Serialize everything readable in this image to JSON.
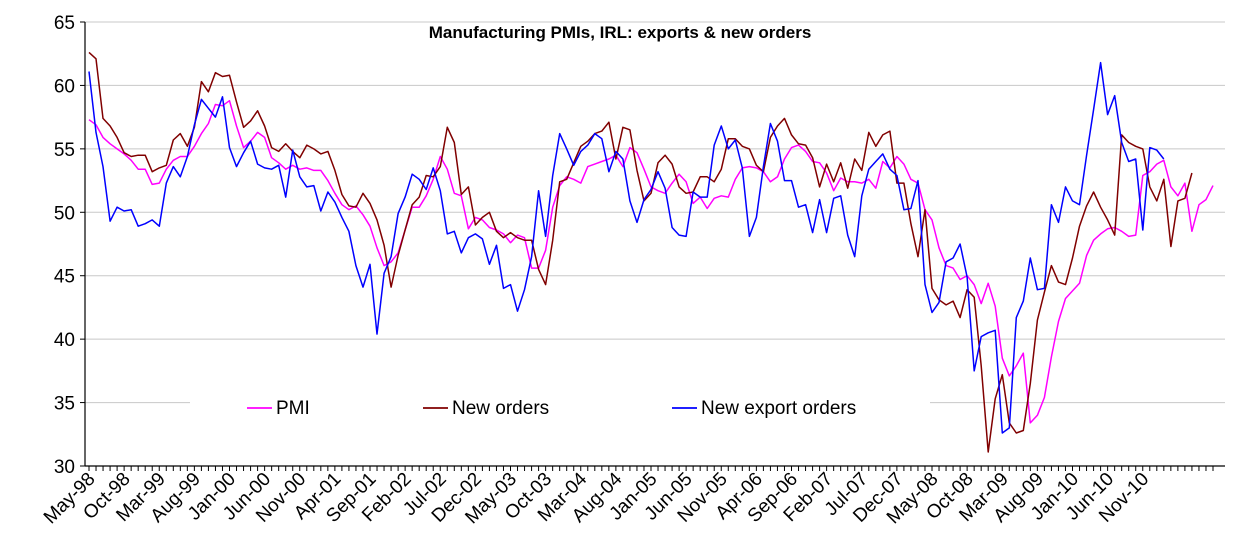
{
  "chart_data": {
    "type": "line",
    "title": "Manufacturing PMIs, IRL: exports & new orders",
    "xlabel": "",
    "ylabel": "",
    "ylim": [
      30,
      65
    ],
    "yticks": [
      30,
      35,
      40,
      45,
      50,
      55,
      60,
      65
    ],
    "grid": "horizontal",
    "legend_position": "bottom-inside",
    "x_start": "May-98",
    "x_end": "Apr-11",
    "x_tick_labels": [
      "May-98",
      "Oct-98",
      "Mar-99",
      "Aug-99",
      "Jan-00",
      "Jun-00",
      "Nov-00",
      "Apr-01",
      "Sep-01",
      "Feb-02",
      "Jul-02",
      "Dec-02",
      "May-03",
      "Oct-03",
      "Mar-04",
      "Aug-04",
      "Jan-05",
      "Jun-05",
      "Nov-05",
      "Apr-06",
      "Sep-06",
      "Feb-07",
      "Jul-07",
      "Dec-07",
      "May-08",
      "Oct-08",
      "Mar-09",
      "Aug-09",
      "Jan-10",
      "Jun-10",
      "Nov-10"
    ],
    "series": [
      {
        "name": "PMI",
        "color": "#ff00ff",
        "values": [
          57.3,
          56.9,
          55.9,
          55.4,
          55.0,
          54.6,
          54.1,
          53.4,
          53.4,
          52.2,
          52.3,
          53.4,
          54.1,
          54.4,
          54.4,
          55.2,
          56.2,
          57.0,
          58.5,
          58.4,
          58.8,
          56.8,
          55.1,
          55.6,
          56.3,
          55.9,
          54.3,
          53.9,
          53.4,
          53.7,
          53.4,
          53.5,
          53.3,
          53.3,
          52.5,
          51.5,
          50.6,
          50.2,
          50.5,
          49.8,
          48.9,
          47.2,
          45.8,
          46.1,
          46.8,
          48.6,
          50.4,
          50.4,
          51.3,
          52.6,
          54.4,
          53.4,
          51.5,
          51.3,
          48.7,
          49.6,
          49.4,
          48.8,
          48.6,
          48.3,
          47.6,
          48.2,
          48.0,
          45.6,
          45.6,
          47.0,
          50.4,
          52.1,
          52.8,
          52.6,
          52.3,
          53.6,
          53.8,
          54.0,
          54.2,
          54.5,
          53.6,
          55.1,
          54.7,
          53.4,
          52.0,
          51.7,
          51.5,
          52.3,
          53.0,
          52.4,
          50.7,
          51.2,
          50.3,
          51.1,
          51.3,
          51.2,
          52.6,
          53.5,
          53.6,
          53.5,
          53.2,
          52.4,
          52.8,
          54.2,
          55.1,
          55.3,
          54.8,
          54.0,
          53.9,
          53.1,
          51.7,
          52.7,
          52.4,
          52.4,
          52.3,
          52.6,
          51.9,
          54.0,
          53.5,
          54.4,
          53.8,
          52.6,
          52.3,
          50.2,
          49.4,
          47.2,
          45.8,
          45.6,
          44.7,
          45.0,
          44.3,
          42.8,
          44.4,
          42.6,
          38.5,
          37.1,
          37.9,
          38.9,
          33.4,
          34.0,
          35.4,
          38.6,
          41.4,
          43.2,
          43.8,
          44.4,
          46.6,
          47.8,
          48.3,
          48.7,
          48.8,
          48.5,
          48.1,
          48.2,
          52.9,
          53.2,
          53.8,
          54.1,
          52.0,
          51.3,
          52.3,
          48.5,
          50.6,
          51.0,
          52.1
        ]
      },
      {
        "name": "New orders",
        "color": "#800000",
        "values": [
          62.6,
          62.1,
          57.4,
          56.8,
          55.9,
          54.7,
          54.4,
          54.5,
          54.5,
          53.2,
          53.5,
          53.7,
          55.7,
          56.2,
          55.2,
          56.7,
          60.3,
          59.5,
          61.0,
          60.7,
          60.8,
          58.7,
          56.7,
          57.2,
          58.0,
          56.8,
          55.1,
          54.8,
          55.4,
          54.8,
          54.3,
          55.3,
          55.0,
          54.6,
          54.8,
          53.3,
          51.4,
          50.5,
          50.4,
          51.5,
          50.7,
          49.4,
          47.4,
          44.1,
          46.6,
          48.6,
          50.6,
          51.2,
          52.9,
          52.8,
          53.6,
          56.7,
          55.5,
          51.4,
          52.0,
          49.0,
          49.6,
          50.0,
          48.5,
          48.0,
          48.4,
          48.0,
          47.8,
          47.8,
          45.5,
          44.3,
          47.8,
          52.4,
          52.6,
          53.9,
          55.2,
          55.6,
          56.2,
          56.4,
          57.1,
          54.2,
          56.7,
          56.5,
          53.3,
          50.9,
          51.5,
          53.9,
          54.5,
          53.8,
          52.0,
          51.5,
          51.6,
          52.8,
          52.8,
          52.4,
          53.4,
          55.8,
          55.8,
          55.2,
          55.0,
          53.7,
          53.2,
          55.9,
          56.8,
          57.4,
          56.1,
          55.4,
          55.3,
          54.3,
          52.0,
          53.8,
          52.4,
          53.9,
          51.9,
          54.2,
          53.3,
          56.3,
          55.2,
          56.1,
          56.4,
          52.3,
          52.3,
          49.1,
          46.5,
          50.2,
          44.0,
          43.1,
          42.7,
          43.0,
          41.7,
          43.9,
          43.3,
          37.9,
          31.1,
          35.3,
          37.2,
          33.4,
          32.6,
          32.8,
          36.5,
          41.5,
          43.7,
          45.8,
          44.5,
          44.3,
          46.4,
          48.9,
          50.5,
          51.6,
          50.4,
          49.4,
          48.2,
          56.1,
          55.5,
          55.2,
          55.0,
          52.0,
          50.9,
          52.6,
          47.3,
          50.9,
          51.1,
          53.1
        ]
      },
      {
        "name": "New export orders",
        "color": "#0000ff",
        "values": [
          61.1,
          56.3,
          53.6,
          49.3,
          50.4,
          50.1,
          50.2,
          48.9,
          49.1,
          49.4,
          48.9,
          52.3,
          53.6,
          52.8,
          54.4,
          56.9,
          58.9,
          58.2,
          57.5,
          59.1,
          55.1,
          53.6,
          54.7,
          55.6,
          53.8,
          53.5,
          53.4,
          53.7,
          51.2,
          54.9,
          52.8,
          52.0,
          52.1,
          50.1,
          51.6,
          50.8,
          49.6,
          48.5,
          45.8,
          44.1,
          45.9,
          40.4,
          45.2,
          46.5,
          49.9,
          51.2,
          53.0,
          52.6,
          51.8,
          53.5,
          51.7,
          48.3,
          48.5,
          46.8,
          48.0,
          48.3,
          47.9,
          45.9,
          47.4,
          44.0,
          44.3,
          42.2,
          43.9,
          46.5,
          51.7,
          48.1,
          52.9,
          56.2,
          55.0,
          53.7,
          54.8,
          55.3,
          56.2,
          55.8,
          53.2,
          54.8,
          54.2,
          50.9,
          49.2,
          51.0,
          51.8,
          53.2,
          51.9,
          48.8,
          48.2,
          48.1,
          51.6,
          51.2,
          51.2,
          55.3,
          56.8,
          55.0,
          55.7,
          53.5,
          48.1,
          49.6,
          53.6,
          57.0,
          55.6,
          52.5,
          52.5,
          50.4,
          50.6,
          48.4,
          51.0,
          48.4,
          51.1,
          51.3,
          48.2,
          46.5,
          51.3,
          53.4,
          54.0,
          54.6,
          53.4,
          52.9,
          50.2,
          50.3,
          52.5,
          44.3,
          42.1,
          42.9,
          46.1,
          46.4,
          47.5,
          44.9,
          37.5,
          40.2,
          40.5,
          40.7,
          32.6,
          33.0,
          41.7,
          43.0,
          46.4,
          43.9,
          44.0,
          50.6,
          49.2,
          52.0,
          50.9,
          50.6,
          54.5,
          58.1,
          61.8,
          57.7,
          59.2,
          55.5,
          54.0,
          54.2,
          48.6,
          55.1,
          54.9,
          54.2
        ]
      }
    ]
  }
}
